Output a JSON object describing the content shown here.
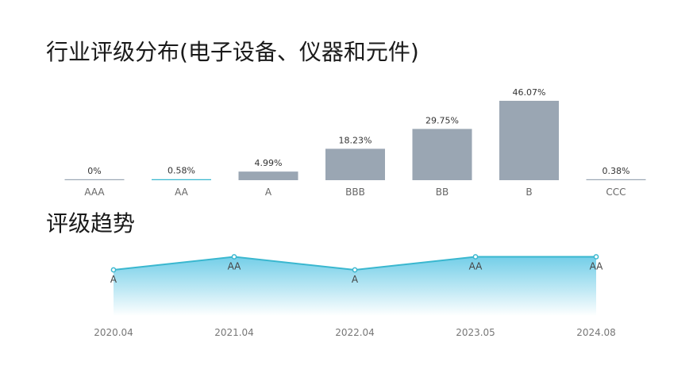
{
  "titles": {
    "distribution": "行业评级分布(电子设备、仪器和元件)",
    "trend": "评级趋势"
  },
  "colors": {
    "bar": "#9aa6b3",
    "highlight": "#3ab7cf",
    "line": "#3ab7cf",
    "area_top": "#5cc6e4",
    "area_bottom": "#ffffff"
  },
  "chart_data": [
    {
      "type": "bar",
      "categories": [
        "AAA",
        "AA",
        "A",
        "BBB",
        "BB",
        "B",
        "CCC"
      ],
      "values": [
        0,
        0.58,
        4.99,
        18.23,
        29.75,
        46.07,
        0.38
      ],
      "value_labels": [
        "0%",
        "0.58%",
        "4.99%",
        "18.23%",
        "29.75%",
        "46.07%",
        "0.38%"
      ],
      "highlight_category": "AA",
      "title": "行业评级分布(电子设备、仪器和元件)",
      "ylim": [
        0,
        50
      ],
      "grid": false
    },
    {
      "type": "area",
      "x": [
        "2020.04",
        "2021.04",
        "2022.04",
        "2023.05",
        "2024.08"
      ],
      "y": [
        "A",
        "AA",
        "A",
        "AA",
        "AA"
      ],
      "levels": [
        "A",
        "AA"
      ],
      "title": "评级趋势",
      "grid": false
    }
  ]
}
